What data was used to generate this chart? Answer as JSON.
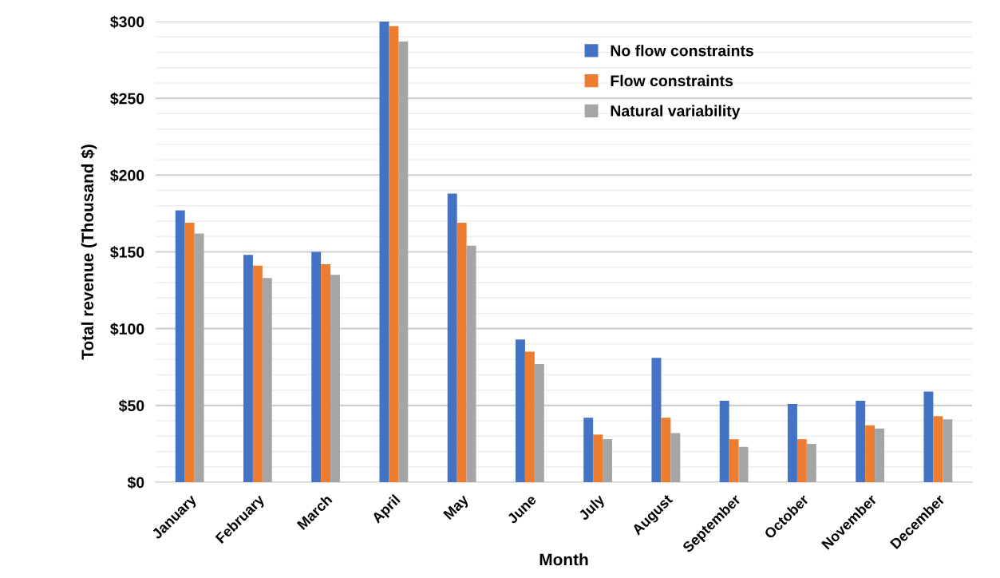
{
  "chart_data": {
    "type": "bar",
    "xlabel": "Month",
    "ylabel": "Total revenue (Thousand $)",
    "categories": [
      "January",
      "February",
      "March",
      "April",
      "May",
      "June",
      "July",
      "August",
      "September",
      "October",
      "November",
      "December"
    ],
    "series": [
      {
        "name": "No flow constraints",
        "color": "#4472c4",
        "values": [
          177,
          148,
          150,
          300,
          188,
          93,
          42,
          81,
          53,
          51,
          53,
          59
        ]
      },
      {
        "name": "Flow constraints",
        "color": "#ed7d31",
        "values": [
          169,
          141,
          142,
          297,
          169,
          85,
          31,
          42,
          28,
          28,
          37,
          43
        ]
      },
      {
        "name": "Natural variability",
        "color": "#a5a5a5",
        "values": [
          162,
          133,
          135,
          287,
          154,
          77,
          28,
          32,
          23,
          25,
          35,
          41
        ]
      }
    ],
    "ylim": [
      0,
      300
    ],
    "yticks": [
      {
        "value": 0,
        "label": "$0"
      },
      {
        "value": 10,
        "label": null
      },
      {
        "value": 20,
        "label": null
      },
      {
        "value": 30,
        "label": null
      },
      {
        "value": 40,
        "label": null
      },
      {
        "value": 50,
        "label": "$50"
      },
      {
        "value": 60,
        "label": null
      },
      {
        "value": 70,
        "label": null
      },
      {
        "value": 80,
        "label": null
      },
      {
        "value": 90,
        "label": null
      },
      {
        "value": 100,
        "label": "$100"
      },
      {
        "value": 110,
        "label": null
      },
      {
        "value": 120,
        "label": null
      },
      {
        "value": 130,
        "label": null
      },
      {
        "value": 140,
        "label": null
      },
      {
        "value": 150,
        "label": "$150"
      },
      {
        "value": 160,
        "label": null
      },
      {
        "value": 170,
        "label": null
      },
      {
        "value": 180,
        "label": null
      },
      {
        "value": 190,
        "label": null
      },
      {
        "value": 200,
        "label": "$200"
      },
      {
        "value": 210,
        "label": null
      },
      {
        "value": 220,
        "label": null
      },
      {
        "value": 230,
        "label": null
      },
      {
        "value": 240,
        "label": null
      },
      {
        "value": 250,
        "label": "$250"
      },
      {
        "value": 260,
        "label": null
      },
      {
        "value": 270,
        "label": null
      },
      {
        "value": 280,
        "label": null
      },
      {
        "value": 290,
        "label": null
      },
      {
        "value": 300,
        "label": "$300"
      }
    ],
    "grid": "y",
    "legend": "top right"
  }
}
